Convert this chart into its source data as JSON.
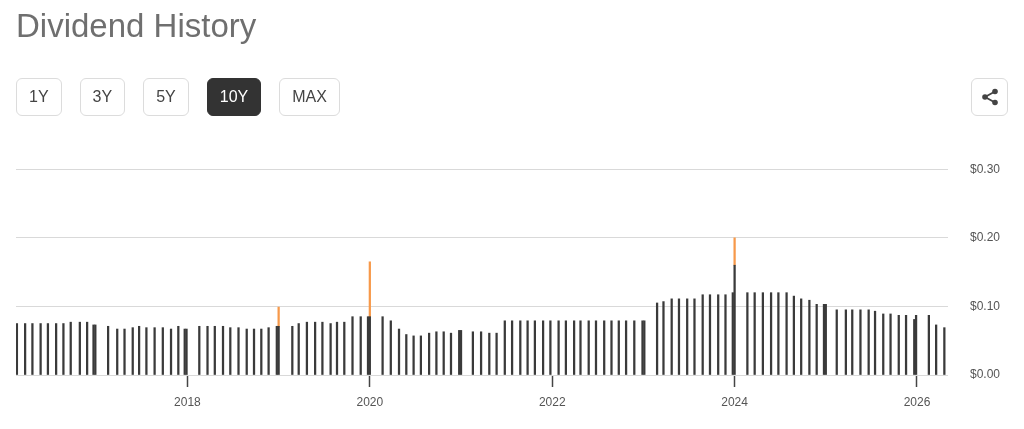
{
  "chart_data": {
    "type": "bar",
    "title": "Dividend History",
    "annotations": [
      "1Y",
      "3Y",
      "5Y",
      "10Y",
      "MAX"
    ],
    "x": [
      2016.13,
      2016.22,
      2016.3,
      2016.39,
      2016.47,
      2016.56,
      2016.64,
      2016.72,
      2016.82,
      2016.9,
      2016.97,
      2016.99,
      2017.13,
      2017.23,
      2017.31,
      2017.4,
      2017.47,
      2017.55,
      2017.64,
      2017.73,
      2017.82,
      2017.9,
      2017.97,
      2017.99,
      2018.13,
      2018.22,
      2018.3,
      2018.39,
      2018.47,
      2018.56,
      2018.65,
      2018.73,
      2018.81,
      2018.89,
      2018.98,
      2019.0,
      2019.15,
      2019.22,
      2019.31,
      2019.4,
      2019.48,
      2019.57,
      2019.64,
      2019.72,
      2019.81,
      2019.9,
      2019.98,
      2020.0,
      2020.14,
      2020.23,
      2020.32,
      2020.4,
      2020.48,
      2020.56,
      2020.65,
      2020.73,
      2020.81,
      2020.89,
      2020.98,
      2021.0,
      2021.13,
      2021.22,
      2021.31,
      2021.39,
      2021.48,
      2021.56,
      2021.65,
      2021.73,
      2021.81,
      2021.9,
      2021.98,
      2022.07,
      2022.15,
      2022.24,
      2022.31,
      2022.4,
      2022.48,
      2022.57,
      2022.65,
      2022.73,
      2022.81,
      2022.9,
      2022.99,
      2023.01,
      2023.15,
      2023.22,
      2023.31,
      2023.39,
      2023.48,
      2023.56,
      2023.65,
      2023.73,
      2023.82,
      2023.9,
      2023.98,
      2024.0,
      2024.14,
      2024.22,
      2024.31,
      2024.4,
      2024.48,
      2024.57,
      2024.65,
      2024.73,
      2024.82,
      2024.9,
      2024.98,
      2025.0,
      2025.12,
      2025.22,
      2025.29,
      2025.38,
      2025.47,
      2025.54,
      2025.63,
      2025.71,
      2025.8,
      2025.88,
      2025.97,
      2025.99,
      2026.13,
      2026.21,
      2026.3
    ],
    "series": [
      {
        "color": "#3a3a3a",
        "values": [
          0.075,
          0.075,
          0.075,
          0.075,
          0.075,
          0.075,
          0.075,
          0.077,
          0.077,
          0.077,
          0.073,
          0.073,
          0.071,
          0.067,
          0.067,
          0.069,
          0.071,
          0.069,
          0.069,
          0.069,
          0.067,
          0.071,
          0.067,
          0.067,
          0.071,
          0.071,
          0.071,
          0.071,
          0.069,
          0.069,
          0.067,
          0.067,
          0.067,
          0.069,
          0.071,
          0.071,
          0.071,
          0.075,
          0.077,
          0.077,
          0.077,
          0.075,
          0.077,
          0.077,
          0.085,
          0.085,
          0.085,
          0.085,
          0.085,
          0.079,
          0.067,
          0.059,
          0.057,
          0.057,
          0.061,
          0.063,
          0.063,
          0.061,
          0.065,
          0.065,
          0.063,
          0.063,
          0.061,
          0.061,
          0.079,
          0.079,
          0.079,
          0.079,
          0.079,
          0.079,
          0.079,
          0.079,
          0.079,
          0.079,
          0.079,
          0.079,
          0.079,
          0.079,
          0.079,
          0.079,
          0.079,
          0.079,
          0.079,
          0.079,
          0.105,
          0.107,
          0.111,
          0.111,
          0.111,
          0.111,
          0.117,
          0.117,
          0.117,
          0.117,
          0.12,
          0.16,
          0.12,
          0.12,
          0.12,
          0.12,
          0.12,
          0.12,
          0.115,
          0.111,
          0.109,
          0.103,
          0.103,
          0.103,
          0.095,
          0.095,
          0.095,
          0.095,
          0.095,
          0.093,
          0.089,
          0.089,
          0.087,
          0.087,
          0.081,
          0.087,
          0.087,
          0.073,
          0.069
        ]
      },
      {
        "color": "#f7994a",
        "values": [
          null,
          null,
          null,
          null,
          null,
          null,
          null,
          null,
          null,
          null,
          null,
          null,
          null,
          null,
          null,
          null,
          null,
          null,
          null,
          null,
          null,
          null,
          null,
          null,
          null,
          null,
          null,
          null,
          null,
          null,
          null,
          null,
          null,
          null,
          null,
          0.028,
          null,
          null,
          null,
          null,
          null,
          null,
          null,
          null,
          null,
          null,
          null,
          0.08,
          null,
          null,
          null,
          null,
          null,
          null,
          null,
          null,
          null,
          null,
          null,
          null,
          null,
          null,
          null,
          null,
          null,
          null,
          null,
          null,
          null,
          null,
          null,
          null,
          null,
          null,
          null,
          null,
          null,
          null,
          null,
          null,
          null,
          null,
          null,
          null,
          null,
          null,
          null,
          null,
          null,
          null,
          null,
          null,
          null,
          null,
          null,
          0.04,
          null,
          null,
          null,
          null,
          null,
          null,
          null,
          null,
          null,
          null,
          null,
          null,
          null,
          null,
          null,
          null,
          null,
          null,
          null,
          null,
          null,
          null,
          null,
          null,
          null,
          null,
          null
        ]
      }
    ],
    "stacked": true,
    "xlim": [
      2016.12,
      2026.34
    ],
    "xticks": [
      2018,
      2020,
      2022,
      2024,
      2026
    ],
    "ylim": [
      0,
      0.3
    ],
    "yticks": [
      {
        "value": 0,
        "label": "$0.00"
      },
      {
        "value": 0.1,
        "label": "$0.10"
      },
      {
        "value": 0.2,
        "label": "$0.20"
      },
      {
        "value": 0.3,
        "label": "$0.30"
      }
    ],
    "grid": "y"
  }
}
